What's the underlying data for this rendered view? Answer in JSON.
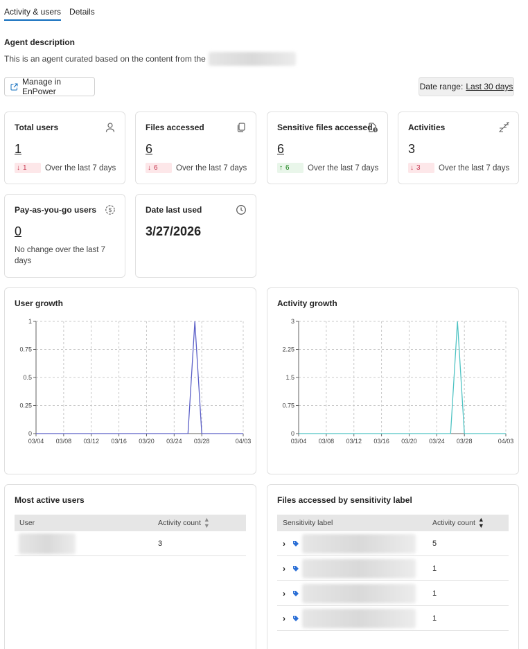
{
  "tabs": [
    {
      "label": "Activity & users",
      "active": true
    },
    {
      "label": "Details",
      "active": false
    }
  ],
  "description": {
    "title": "Agent description",
    "text": "This is an agent curated based on the content from the"
  },
  "actions": {
    "manage_label": "Manage in EnPower",
    "date_range_prefix": "Date range:",
    "date_range_value": "Last 30 days"
  },
  "cards": {
    "total_users": {
      "title": "Total users",
      "value": "1",
      "delta": "1",
      "trend_text": "Over the last 7 days",
      "icon": "person-icon"
    },
    "files_accessed": {
      "title": "Files accessed",
      "value": "6",
      "delta": "6",
      "trend_text": "Over the last 7 days",
      "icon": "copy-icon"
    },
    "sensitive_files": {
      "title": "Sensitive files accessed",
      "value": "6",
      "delta": "6",
      "trend_text": "Over the last 7 days",
      "icon": "document-info-icon"
    },
    "activities": {
      "title": "Activities",
      "value": "3",
      "delta": "3",
      "trend_text": "Over the last 7 days",
      "icon": "sleep-icon"
    },
    "payg_users": {
      "title": "Pay-as-you-go users",
      "value": "0",
      "trend_text": "No change over the last 7 days",
      "icon": "money-icon"
    },
    "date_last_used": {
      "title": "Date last used",
      "value": "3/27/2026",
      "icon": "clock-icon"
    }
  },
  "charts": {
    "user_growth": {
      "title": "User growth",
      "color": "#5b5fc7"
    },
    "activity_growth": {
      "title": "Activity growth",
      "color": "#4fc3c3"
    }
  },
  "chart_data": [
    {
      "type": "line",
      "title": "User growth",
      "x": [
        "03/04",
        "03/05",
        "03/06",
        "03/07",
        "03/08",
        "03/09",
        "03/10",
        "03/11",
        "03/12",
        "03/13",
        "03/14",
        "03/15",
        "03/16",
        "03/17",
        "03/18",
        "03/19",
        "03/20",
        "03/21",
        "03/22",
        "03/23",
        "03/24",
        "03/25",
        "03/26",
        "03/27",
        "03/28",
        "03/29",
        "03/30",
        "03/31",
        "04/01",
        "04/02",
        "04/03"
      ],
      "series": [
        {
          "values": [
            0,
            0,
            0,
            0,
            0,
            0,
            0,
            0,
            0,
            0,
            0,
            0,
            0,
            0,
            0,
            0,
            0,
            0,
            0,
            0,
            0,
            0,
            0,
            1,
            0,
            0,
            0,
            0,
            0,
            0,
            0
          ]
        }
      ],
      "x_ticks": [
        "03/04",
        "03/08",
        "03/12",
        "03/16",
        "03/20",
        "03/24",
        "03/28",
        "04/03"
      ],
      "y_ticks": [
        "0",
        "0.25",
        "0.5",
        "0.75",
        "1"
      ],
      "ylim": [
        0,
        1
      ],
      "grid": true
    },
    {
      "type": "line",
      "title": "Activity growth",
      "x": [
        "03/04",
        "03/05",
        "03/06",
        "03/07",
        "03/08",
        "03/09",
        "03/10",
        "03/11",
        "03/12",
        "03/13",
        "03/14",
        "03/15",
        "03/16",
        "03/17",
        "03/18",
        "03/19",
        "03/20",
        "03/21",
        "03/22",
        "03/23",
        "03/24",
        "03/25",
        "03/26",
        "03/27",
        "03/28",
        "03/29",
        "03/30",
        "03/31",
        "04/01",
        "04/02",
        "04/03"
      ],
      "series": [
        {
          "values": [
            0,
            0,
            0,
            0,
            0,
            0,
            0,
            0,
            0,
            0,
            0,
            0,
            0,
            0,
            0,
            0,
            0,
            0,
            0,
            0,
            0,
            0,
            0,
            3,
            0,
            0,
            0,
            0,
            0,
            0,
            0
          ]
        }
      ],
      "x_ticks": [
        "03/04",
        "03/08",
        "03/12",
        "03/16",
        "03/20",
        "03/24",
        "03/28",
        "04/03"
      ],
      "y_ticks": [
        "0",
        "0.75",
        "1.5",
        "2.25",
        "3"
      ],
      "ylim": [
        0,
        3
      ],
      "grid": true
    }
  ],
  "most_active": {
    "title": "Most active users",
    "columns": [
      "User",
      "Activity count"
    ],
    "rows": [
      {
        "count": "3"
      }
    ]
  },
  "sensitivity": {
    "title": "Files accessed by sensitivity label",
    "columns": [
      "Sensitivity label",
      "Activity count"
    ],
    "rows": [
      {
        "count": "5"
      },
      {
        "count": "1"
      },
      {
        "count": "1"
      },
      {
        "count": "1"
      }
    ]
  }
}
